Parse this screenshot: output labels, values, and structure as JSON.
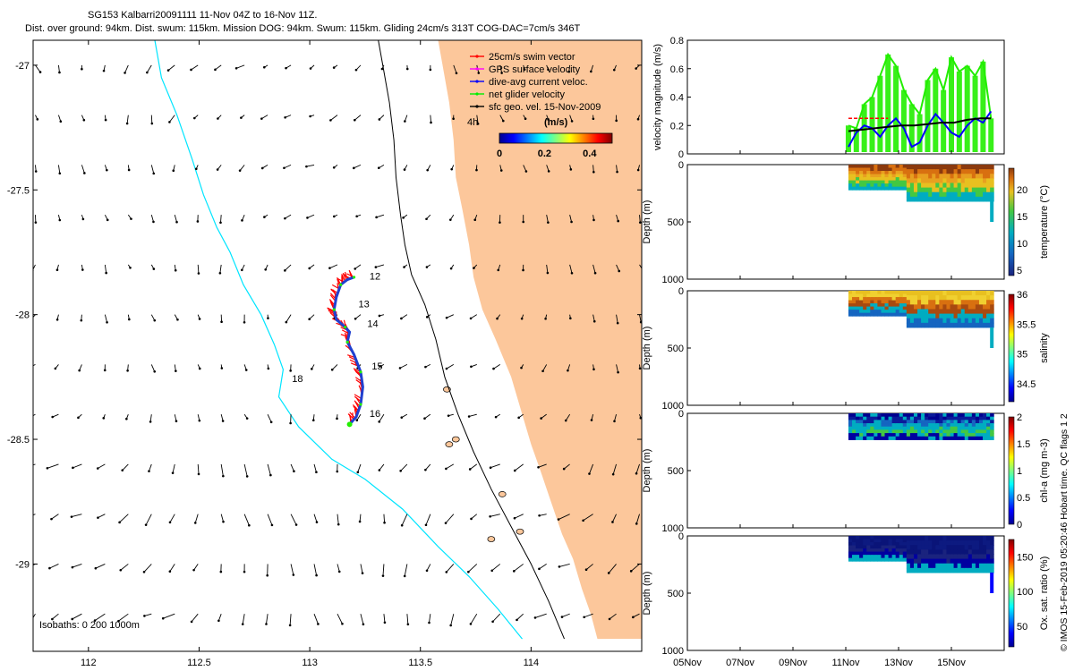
{
  "title": {
    "line1": "SG153 Kalbarri20091111 11-Nov 04Z to 16-Nov 11Z.",
    "line2": "Dist. over ground: 94km. Dist. swum: 115km. Mission DOG: 94km. Swum: 115km. Gliding 24cm/s 313T COG-DAC=7cm/s 346T"
  },
  "side_note": "© IMOS 15-Feb-2019 05:20:46 Hobart time. QC flags 1  2",
  "colors": {
    "land": "#fcc79b",
    "isobath_200": "#00e5ff",
    "track": "#2040d0",
    "swim": "#ff0000",
    "net": "#22ee00",
    "gps": "#ff00ff"
  },
  "chart_data": [
    {
      "type": "scatter",
      "subtype": "map",
      "xlim": [
        111.75,
        114.5
      ],
      "ylim": [
        -29.35,
        -26.9
      ],
      "x_ticks": [
        112,
        112.5,
        113,
        113.5,
        114
      ],
      "y_ticks": [
        -27,
        -27.5,
        -28,
        -28.5,
        -29
      ],
      "legend": [
        {
          "label": "25cm/s swim vector",
          "color": "#ff0000"
        },
        {
          "label": "GPS surface velocity",
          "color": "#ff00ff"
        },
        {
          "label": "dive-avg current veloc.",
          "color": "#0000ff"
        },
        {
          "label": "net glider velocity",
          "color": "#00ee00"
        },
        {
          "label": "sfc geo. vel. 15-Nov-2009",
          "color": "#000000"
        }
      ],
      "legend_note": "4h",
      "colorbar": {
        "label": "(m/s)",
        "ticks": [
          0,
          0.2,
          0.4
        ],
        "range": [
          0,
          0.5
        ]
      },
      "isobaths_label": "Isobaths: 0   200  1000m",
      "day_labels": [
        {
          "text": "12",
          "lon": 113.27,
          "lat": -27.86
        },
        {
          "text": "13",
          "lon": 113.22,
          "lat": -27.97
        },
        {
          "text": "14",
          "lon": 113.26,
          "lat": -28.05
        },
        {
          "text": "15",
          "lon": 113.28,
          "lat": -28.22
        },
        {
          "text": "16",
          "lon": 113.27,
          "lat": -28.41
        },
        {
          "text": "18",
          "lon": 112.92,
          "lat": -28.27
        }
      ],
      "track": [
        [
          113.2,
          -27.85
        ],
        [
          113.17,
          -27.86
        ],
        [
          113.14,
          -27.88
        ],
        [
          113.12,
          -27.93
        ],
        [
          113.11,
          -27.98
        ],
        [
          113.12,
          -28.02
        ],
        [
          113.16,
          -28.05
        ],
        [
          113.18,
          -28.07
        ],
        [
          113.17,
          -28.11
        ],
        [
          113.2,
          -28.16
        ],
        [
          113.23,
          -28.23
        ],
        [
          113.24,
          -28.29
        ],
        [
          113.23,
          -28.36
        ],
        [
          113.21,
          -28.41
        ],
        [
          113.18,
          -28.44
        ]
      ],
      "coast_1000m": [
        [
          113.58,
          -26.9
        ],
        [
          113.6,
          -27.0
        ],
        [
          113.63,
          -27.15
        ],
        [
          113.65,
          -27.3
        ],
        [
          113.66,
          -27.45
        ],
        [
          113.69,
          -27.58
        ],
        [
          113.72,
          -27.72
        ],
        [
          113.74,
          -27.85
        ],
        [
          113.78,
          -27.98
        ],
        [
          113.84,
          -28.1
        ],
        [
          113.91,
          -28.25
        ],
        [
          113.96,
          -28.4
        ],
        [
          114.0,
          -28.52
        ],
        [
          114.04,
          -28.62
        ],
        [
          114.09,
          -28.75
        ],
        [
          114.14,
          -28.88
        ],
        [
          114.19,
          -28.98
        ],
        [
          114.23,
          -29.1
        ],
        [
          114.27,
          -29.2
        ],
        [
          114.3,
          -29.3
        ]
      ],
      "isobath_200": [
        [
          112.3,
          -26.9
        ],
        [
          112.33,
          -27.05
        ],
        [
          112.4,
          -27.2
        ],
        [
          112.47,
          -27.38
        ],
        [
          112.52,
          -27.52
        ],
        [
          112.58,
          -27.65
        ],
        [
          112.64,
          -27.75
        ],
        [
          112.7,
          -27.88
        ],
        [
          112.78,
          -28.0
        ],
        [
          112.84,
          -28.12
        ],
        [
          112.88,
          -28.22
        ],
        [
          112.86,
          -28.33
        ],
        [
          112.95,
          -28.45
        ],
        [
          113.1,
          -28.58
        ],
        [
          113.25,
          -28.66
        ],
        [
          113.42,
          -28.78
        ],
        [
          113.58,
          -28.93
        ],
        [
          113.72,
          -29.05
        ],
        [
          113.85,
          -29.18
        ],
        [
          113.96,
          -29.3
        ]
      ],
      "isobath_1000": [
        [
          113.31,
          -26.9
        ],
        [
          113.33,
          -27.0
        ],
        [
          113.36,
          -27.15
        ],
        [
          113.38,
          -27.3
        ],
        [
          113.39,
          -27.45
        ],
        [
          113.41,
          -27.6
        ],
        [
          113.43,
          -27.72
        ],
        [
          113.46,
          -27.84
        ],
        [
          113.52,
          -27.96
        ],
        [
          113.57,
          -28.1
        ],
        [
          113.61,
          -28.25
        ],
        [
          113.67,
          -28.4
        ],
        [
          113.74,
          -28.55
        ],
        [
          113.82,
          -28.7
        ],
        [
          113.91,
          -28.85
        ],
        [
          114.0,
          -29.0
        ],
        [
          114.08,
          -29.15
        ],
        [
          114.15,
          -29.3
        ]
      ]
    },
    {
      "type": "line",
      "ylabel": "velocity magnitude (m/s)",
      "ylim": [
        0,
        0.8
      ],
      "y_ticks": [
        0,
        0.2,
        0.4,
        0.6,
        0.8
      ],
      "xlim": [
        "05Nov",
        "17Nov"
      ],
      "series": [
        {
          "color": "#22ee00",
          "x": [
            11.1,
            11.4,
            11.7,
            12.0,
            12.3,
            12.6,
            12.9,
            13.2,
            13.5,
            13.8,
            14.1,
            14.4,
            14.7,
            15.0,
            15.3,
            15.6,
            15.9,
            16.2,
            16.5
          ],
          "values": [
            0.2,
            0.18,
            0.35,
            0.4,
            0.55,
            0.7,
            0.62,
            0.45,
            0.35,
            0.28,
            0.52,
            0.6,
            0.45,
            0.68,
            0.58,
            0.62,
            0.55,
            0.65,
            0.25
          ]
        },
        {
          "color": "#0000ff",
          "x": [
            11.1,
            11.4,
            11.7,
            12.0,
            12.3,
            12.6,
            12.9,
            13.2,
            13.5,
            13.8,
            14.1,
            14.4,
            14.7,
            15.0,
            15.3,
            15.6,
            15.9,
            16.2,
            16.5
          ],
          "values": [
            0.05,
            0.15,
            0.2,
            0.18,
            0.12,
            0.2,
            0.25,
            0.18,
            0.05,
            0.08,
            0.2,
            0.28,
            0.22,
            0.15,
            0.12,
            0.2,
            0.25,
            0.22,
            0.3
          ]
        },
        {
          "color": "#000000",
          "x": [
            11.1,
            11.6,
            12.1,
            12.6,
            13.1,
            13.6,
            14.1,
            14.6,
            15.1,
            15.6,
            16.1,
            16.5
          ],
          "values": [
            0.16,
            0.17,
            0.18,
            0.19,
            0.2,
            0.2,
            0.21,
            0.22,
            0.22,
            0.24,
            0.25,
            0.25
          ]
        },
        {
          "color": "#ff0000",
          "x": [
            11.1,
            11.6,
            12.1,
            12.6
          ],
          "values": [
            0.25,
            0.25,
            0.25,
            0.25
          ]
        }
      ]
    },
    {
      "type": "heatmap",
      "ylabel": "Depth (m)",
      "ylim": [
        1000,
        0
      ],
      "y_ticks": [
        0,
        500,
        1000
      ],
      "colorbar_label": "temperature (°C)",
      "colorbar_ticks": [
        5,
        10,
        15,
        20
      ],
      "crange": [
        4,
        24
      ]
    },
    {
      "type": "heatmap",
      "ylabel": "Depth (m)",
      "ylim": [
        1000,
        0
      ],
      "y_ticks": [
        0,
        500,
        1000
      ],
      "colorbar_label": "salinity",
      "colorbar_ticks": [
        34.5,
        35,
        35.5,
        36
      ],
      "crange": [
        34.2,
        36
      ]
    },
    {
      "type": "heatmap",
      "ylabel": "Depth (m)",
      "ylim": [
        1000,
        0
      ],
      "y_ticks": [
        0,
        500,
        1000
      ],
      "colorbar_label": "chl-a (mg m-3)",
      "colorbar_ticks": [
        0,
        0.5,
        1,
        1.5,
        2
      ],
      "crange": [
        0,
        2
      ]
    },
    {
      "type": "heatmap",
      "ylabel": "Depth (m)",
      "ylim": [
        1000,
        0
      ],
      "y_ticks": [
        0,
        500,
        1000
      ],
      "colorbar_label": "Ox. sat. ratio (%)",
      "colorbar_ticks": [
        50,
        100,
        150
      ],
      "crange": [
        20,
        175
      ]
    }
  ],
  "time_axis": {
    "ticks": [
      "05Nov",
      "07Nov",
      "09Nov",
      "11Nov",
      "13Nov",
      "15Nov"
    ],
    "day_values": [
      5,
      7,
      9,
      11,
      13,
      15
    ],
    "range_days": [
      5,
      17
    ]
  }
}
